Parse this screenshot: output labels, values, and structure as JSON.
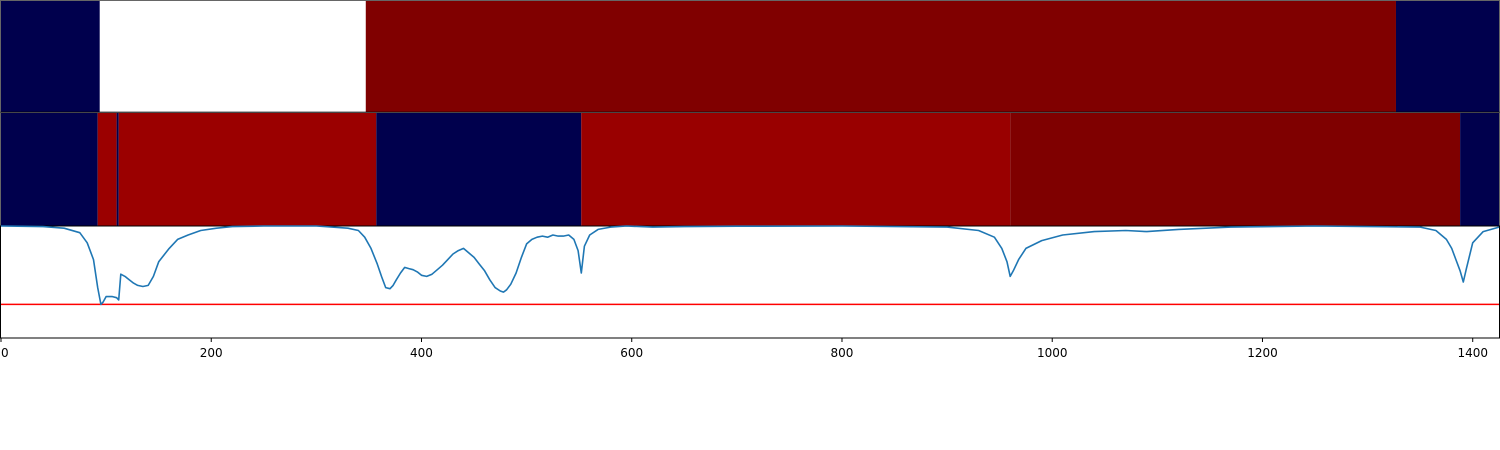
{
  "chart_data": [
    {
      "type": "heatmap",
      "panel": "top-segmentation-band",
      "xlim": [
        0,
        1425
      ],
      "segments": [
        {
          "start": 0,
          "end": 94,
          "color": "#00004d"
        },
        {
          "start": 94,
          "end": 347,
          "color": "#ffffff"
        },
        {
          "start": 347,
          "end": 1327,
          "color": "#800000"
        },
        {
          "start": 1327,
          "end": 1425,
          "color": "#00004d"
        }
      ]
    },
    {
      "type": "heatmap",
      "panel": "middle-segmentation-band",
      "xlim": [
        0,
        1425
      ],
      "segments": [
        {
          "start": 0,
          "end": 92,
          "color": "#00004d"
        },
        {
          "start": 92,
          "end": 110,
          "color": "#9b0000"
        },
        {
          "start": 110,
          "end": 112,
          "color": "#00004d"
        },
        {
          "start": 112,
          "end": 357,
          "color": "#9b0000"
        },
        {
          "start": 357,
          "end": 552,
          "color": "#00004d"
        },
        {
          "start": 552,
          "end": 960,
          "color": "#990000"
        },
        {
          "start": 960,
          "end": 1388,
          "color": "#7f0000"
        },
        {
          "start": 1388,
          "end": 1425,
          "color": "#00004d"
        }
      ]
    },
    {
      "type": "line",
      "panel": "score-curve",
      "xlim": [
        0,
        1425
      ],
      "ylim": [
        0,
        1
      ],
      "xticks": [
        0,
        200,
        400,
        600,
        800,
        1000,
        1200,
        1400
      ],
      "threshold": {
        "value": 0.3,
        "color": "#ff0000"
      },
      "series": [
        {
          "color": "#1f77b4",
          "x": [
            0,
            40,
            60,
            75,
            82,
            88,
            92,
            95,
            97,
            100,
            106,
            110,
            112,
            114,
            118,
            122,
            126,
            130,
            135,
            140,
            145,
            150,
            155,
            160,
            168,
            178,
            190,
            205,
            220,
            250,
            300,
            330,
            340,
            346,
            352,
            358,
            362,
            366,
            370,
            373,
            376,
            380,
            384,
            388,
            392,
            396,
            400,
            405,
            410,
            415,
            420,
            425,
            430,
            435,
            440,
            445,
            450,
            455,
            460,
            465,
            470,
            475,
            478,
            481,
            485,
            490,
            495,
            500,
            505,
            510,
            515,
            520,
            525,
            530,
            535,
            540,
            545,
            549,
            552,
            555,
            560,
            568,
            580,
            595,
            620,
            650,
            700,
            800,
            900,
            930,
            945,
            952,
            957,
            960,
            963,
            968,
            975,
            990,
            1010,
            1040,
            1070,
            1090,
            1120,
            1170,
            1250,
            1350,
            1365,
            1375,
            1380,
            1384,
            1388,
            1391,
            1394,
            1400,
            1410,
            1425
          ],
          "y": [
            1.0,
            0.995,
            0.98,
            0.94,
            0.85,
            0.7,
            0.45,
            0.3,
            0.32,
            0.37,
            0.37,
            0.36,
            0.34,
            0.57,
            0.55,
            0.52,
            0.49,
            0.47,
            0.46,
            0.47,
            0.55,
            0.68,
            0.74,
            0.8,
            0.88,
            0.92,
            0.96,
            0.98,
            0.995,
            1.0,
            1.0,
            0.98,
            0.96,
            0.9,
            0.8,
            0.66,
            0.55,
            0.45,
            0.44,
            0.47,
            0.52,
            0.58,
            0.63,
            0.62,
            0.61,
            0.59,
            0.56,
            0.55,
            0.57,
            0.61,
            0.65,
            0.7,
            0.75,
            0.78,
            0.8,
            0.76,
            0.72,
            0.66,
            0.6,
            0.52,
            0.45,
            0.42,
            0.41,
            0.43,
            0.48,
            0.58,
            0.72,
            0.84,
            0.88,
            0.9,
            0.91,
            0.9,
            0.92,
            0.91,
            0.91,
            0.92,
            0.88,
            0.78,
            0.58,
            0.82,
            0.92,
            0.97,
            0.99,
            1.0,
            0.99,
            0.995,
            0.998,
            1.0,
            0.99,
            0.96,
            0.9,
            0.8,
            0.68,
            0.55,
            0.6,
            0.7,
            0.8,
            0.87,
            0.92,
            0.95,
            0.96,
            0.95,
            0.97,
            0.99,
            1.0,
            0.99,
            0.96,
            0.88,
            0.8,
            0.7,
            0.6,
            0.5,
            0.62,
            0.85,
            0.95,
            0.99
          ]
        }
      ]
    }
  ]
}
